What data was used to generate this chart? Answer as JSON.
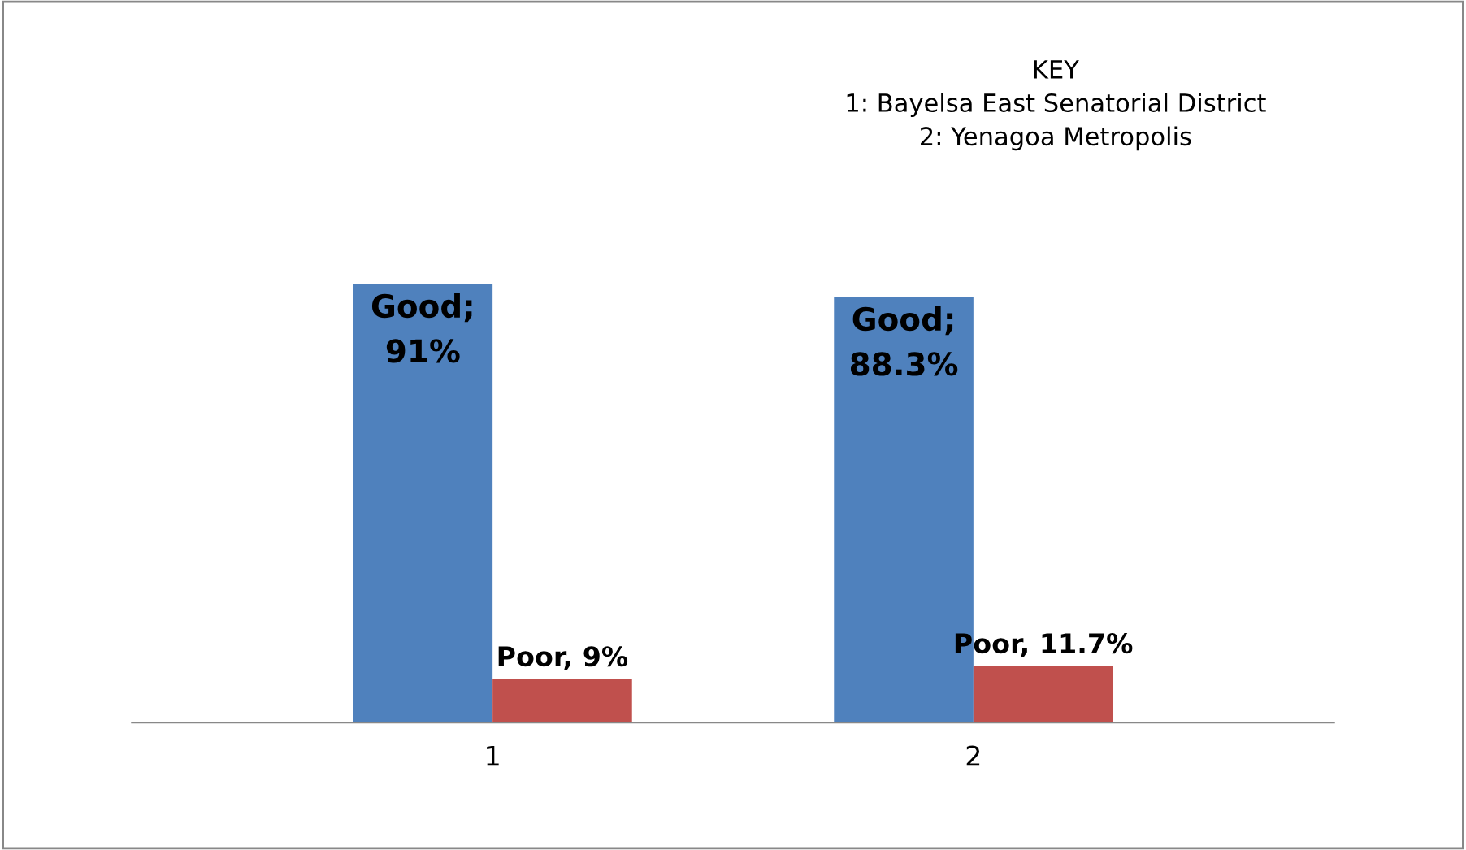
{
  "chart_data": {
    "type": "bar",
    "categories": [
      "1",
      "2"
    ],
    "series": [
      {
        "color": "#4f81bd",
        "values": [
          91,
          88.3
        ],
        "value_labels": [
          "Good;\n91%",
          "Good;\n88.3%"
        ]
      },
      {
        "color": "#c0504d",
        "values": [
          9,
          11.7
        ],
        "value_labels": [
          "Poor, 9%",
          "Poor, 11.7%"
        ]
      }
    ],
    "annotations": [
      "KEY\n1: Bayelsa East Senatorial District\n2: Yenagoa Metropolis"
    ],
    "grid": false,
    "legend": false
  }
}
